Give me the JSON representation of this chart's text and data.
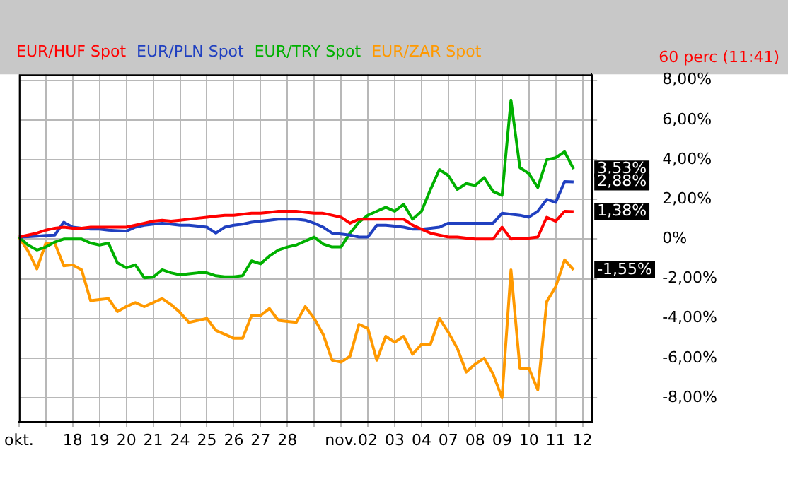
{
  "chart_data": {
    "type": "line",
    "legend": "top left",
    "grid": true,
    "marker": "none",
    "line_style": "solid",
    "categories": [
      "okt.",
      null,
      null,
      null,
      null,
      null,
      "18",
      null,
      null,
      "19",
      null,
      null,
      "20",
      null,
      null,
      "21",
      null,
      null,
      "24",
      null,
      null,
      "25",
      null,
      null,
      "26",
      null,
      null,
      "27",
      null,
      null,
      "28",
      null,
      null,
      null,
      null,
      null,
      "nov.",
      null,
      null,
      "02",
      null,
      null,
      "03",
      null,
      null,
      "04",
      null,
      null,
      "07",
      null,
      null,
      "08",
      null,
      null,
      "09",
      null,
      null,
      "10",
      null,
      null,
      "11",
      null,
      null,
      "12",
      null
    ],
    "ylim": [
      -9.2,
      8.3
    ],
    "yticks": [
      {
        "value": -8,
        "label": "-8,00%"
      },
      {
        "value": -6,
        "label": "-6,00%"
      },
      {
        "value": -4,
        "label": "-4,00%"
      },
      {
        "value": -2,
        "label": "-2,00%"
      },
      {
        "value": 0,
        "label": "0%"
      },
      {
        "value": 2,
        "label": "2,00%"
      },
      {
        "value": 4,
        "label": "4,00%"
      },
      {
        "value": 6,
        "label": "6,00%"
      },
      {
        "value": 8,
        "label": "8,00%"
      }
    ],
    "series": [
      {
        "name": "EUR/HUF Spot",
        "color": "#ff0000",
        "values": [
          0.1,
          0.2,
          0.3,
          0.45,
          0.55,
          0.6,
          0.55,
          0.55,
          0.6,
          0.6,
          0.6,
          0.6,
          0.6,
          0.7,
          0.8,
          0.9,
          0.95,
          0.9,
          0.95,
          1.0,
          1.05,
          1.1,
          1.15,
          1.2,
          1.2,
          1.25,
          1.3,
          1.3,
          1.35,
          1.4,
          1.4,
          1.4,
          1.35,
          1.3,
          1.3,
          1.2,
          1.1,
          0.8,
          1.0,
          1.0,
          1.0,
          1.0,
          1.0,
          1.0,
          0.7,
          0.5,
          0.3,
          0.2,
          0.1,
          0.1,
          0.05,
          0,
          0,
          0,
          0.6,
          0,
          0.05,
          0.05,
          0.1,
          1.1,
          0.9,
          1.4,
          1.38,
          null,
          null
        ]
      },
      {
        "name": "EUR/PLN Spot",
        "color": "#2040c0",
        "values": [
          0.1,
          0.12,
          0.15,
          0.18,
          0.2,
          0.85,
          0.6,
          0.55,
          0.5,
          0.5,
          0.45,
          0.42,
          0.4,
          0.6,
          0.7,
          0.75,
          0.8,
          0.75,
          0.7,
          0.7,
          0.65,
          0.6,
          0.3,
          0.6,
          0.7,
          0.75,
          0.85,
          0.9,
          0.95,
          1.0,
          1.0,
          1.0,
          0.95,
          0.8,
          0.6,
          0.3,
          0.25,
          0.2,
          0.1,
          0.1,
          0.7,
          0.7,
          0.65,
          0.6,
          0.5,
          0.5,
          0.55,
          0.6,
          0.8,
          0.8,
          0.8,
          0.8,
          0.8,
          0.8,
          1.3,
          1.25,
          1.2,
          1.1,
          1.4,
          2.0,
          1.85,
          2.9,
          2.88,
          null,
          null
        ]
      },
      {
        "name": "EUR/TRY Spot",
        "color": "#00b000",
        "values": [
          0.1,
          -0.3,
          -0.55,
          -0.4,
          -0.15,
          0,
          0,
          0,
          -0.2,
          -0.3,
          -0.2,
          -1.2,
          -1.45,
          -1.3,
          -1.95,
          -1.92,
          -1.55,
          -1.7,
          -1.8,
          -1.75,
          -1.7,
          -1.7,
          -1.85,
          -1.9,
          -1.9,
          -1.85,
          -1.1,
          -1.25,
          -0.85,
          -0.55,
          -0.4,
          -0.3,
          -0.1,
          0.1,
          -0.25,
          -0.4,
          -0.4,
          0.3,
          0.85,
          1.2,
          1.4,
          1.6,
          1.4,
          1.75,
          1.0,
          1.4,
          2.5,
          3.5,
          3.2,
          2.5,
          2.8,
          2.7,
          3.1,
          2.4,
          2.2,
          7.0,
          3.6,
          3.3,
          2.6,
          4.0,
          4.1,
          4.4,
          3.53,
          null,
          null
        ]
      },
      {
        "name": "EUR/ZAR Spot",
        "color": "#ff9900",
        "values": [
          0.1,
          -0.6,
          -1.5,
          -0.2,
          -0.2,
          -1.35,
          -1.3,
          -1.55,
          -3.1,
          -3.05,
          -3.0,
          -3.65,
          -3.4,
          -3.2,
          -3.4,
          -3.2,
          -3.0,
          -3.3,
          -3.7,
          -4.2,
          -4.1,
          -4.0,
          -4.6,
          -4.8,
          -5.0,
          -5.0,
          -3.85,
          -3.85,
          -3.5,
          -4.1,
          -4.15,
          -4.2,
          -3.4,
          -4.0,
          -4.8,
          -6.1,
          -6.2,
          -5.9,
          -4.3,
          -4.5,
          -6.1,
          -4.9,
          -5.2,
          -4.9,
          -5.8,
          -5.3,
          -5.3,
          -4.0,
          -4.7,
          -5.5,
          -6.7,
          -6.3,
          -6.0,
          -6.8,
          -8.0,
          -1.55,
          -6.5,
          -6.5,
          -7.6,
          -3.15,
          -2.4,
          -1.05,
          -1.55,
          null,
          null
        ]
      }
    ],
    "annotations": [
      "60 perc (11:41)",
      {
        "text": "3,53%",
        "y": 3.53
      },
      {
        "text": "2,88%",
        "y": 2.88
      },
      {
        "text": "1,38%",
        "y": 1.38
      },
      "-1,55%"
    ]
  }
}
